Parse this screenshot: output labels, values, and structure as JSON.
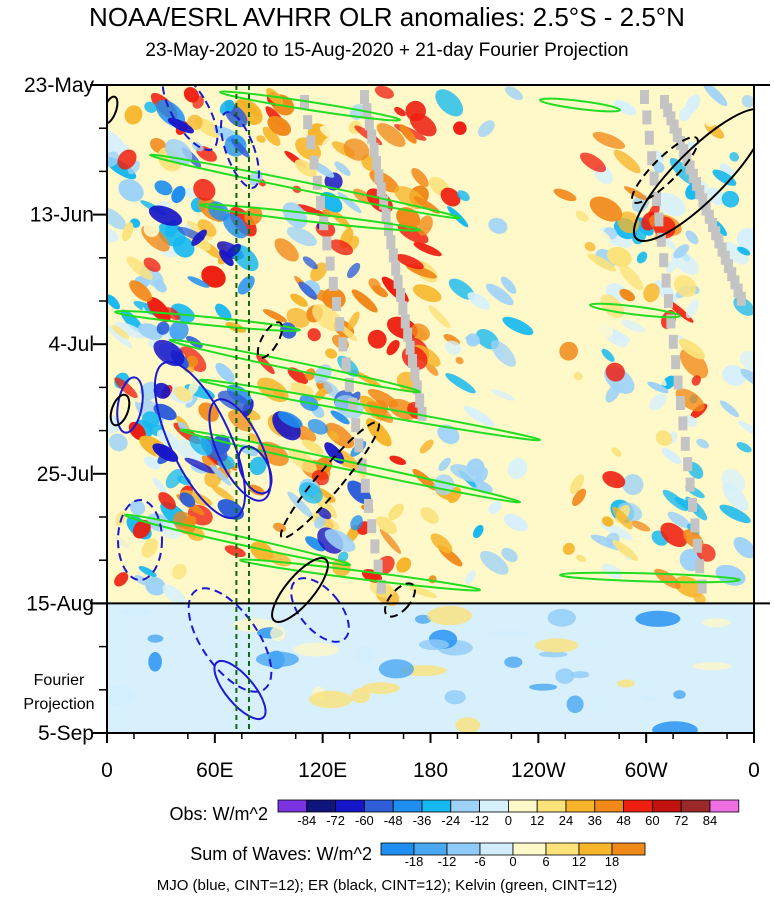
{
  "title": "NOAA/ESRL AVHRR OLR anomalies: 2.5°S - 2.5°N",
  "subtitle": "23-May-2020 to 15-Aug-2020 + 21-day Fourier Projection",
  "footer": "MJO (blue, CINT=12); ER (black, CINT=12); Kelvin (green, CINT=12)",
  "chart_data": {
    "type": "heatmap",
    "x_axis": {
      "tick_labels": [
        "0",
        "60E",
        "120E",
        "180",
        "120W",
        "60W",
        "0"
      ],
      "tick_values_deg_east": [
        0,
        60,
        120,
        180,
        240,
        300,
        360
      ],
      "range": [
        0,
        360
      ]
    },
    "y_axis": {
      "tick_labels": [
        "23-May",
        "13-Jun",
        "4-Jul",
        "25-Jul",
        "15-Aug",
        "5-Sep"
      ],
      "range": [
        "2020-05-23",
        "2020-09-05"
      ],
      "orientation": "time increases downward",
      "annotation": [
        "Fourier",
        "Projection"
      ]
    },
    "observation_end": "2020-08-15",
    "reference_longitudes_deg_east": [
      72,
      79
    ],
    "colorbars": [
      {
        "label": "Obs: W/m^2",
        "levels": [
          "-84",
          "-72",
          "-60",
          "-48",
          "-36",
          "-24",
          "-12",
          "0",
          "12",
          "24",
          "36",
          "48",
          "60",
          "72",
          "84"
        ],
        "colors": [
          "#7a33e0",
          "#10147d",
          "#1616c8",
          "#2f5fd8",
          "#1e8ef0",
          "#16b8f0",
          "#9ed2f8",
          "#d6f0fc",
          "#fff8c8",
          "#fbe27a",
          "#f6b52a",
          "#f1891a",
          "#ee1e10",
          "#c2120e",
          "#9a2a2a",
          "#ee6fe4"
        ]
      },
      {
        "label": "Sum of Waves: W/m^2",
        "levels": [
          "-18",
          "-12",
          "-6",
          "0",
          "6",
          "12",
          "18"
        ],
        "colors": [
          "#1e8ef0",
          "#4aa8f3",
          "#8fcbf8",
          "#d2eefc",
          "#fff8c8",
          "#fbe27a",
          "#f6b52a",
          "#f1891a"
        ]
      }
    ],
    "contour_sets": [
      {
        "name": "MJO",
        "color": "blue",
        "cint": 12
      },
      {
        "name": "ER",
        "color": "black",
        "cint": 12
      },
      {
        "name": "Kelvin",
        "color": "green",
        "cint": 12
      }
    ]
  }
}
